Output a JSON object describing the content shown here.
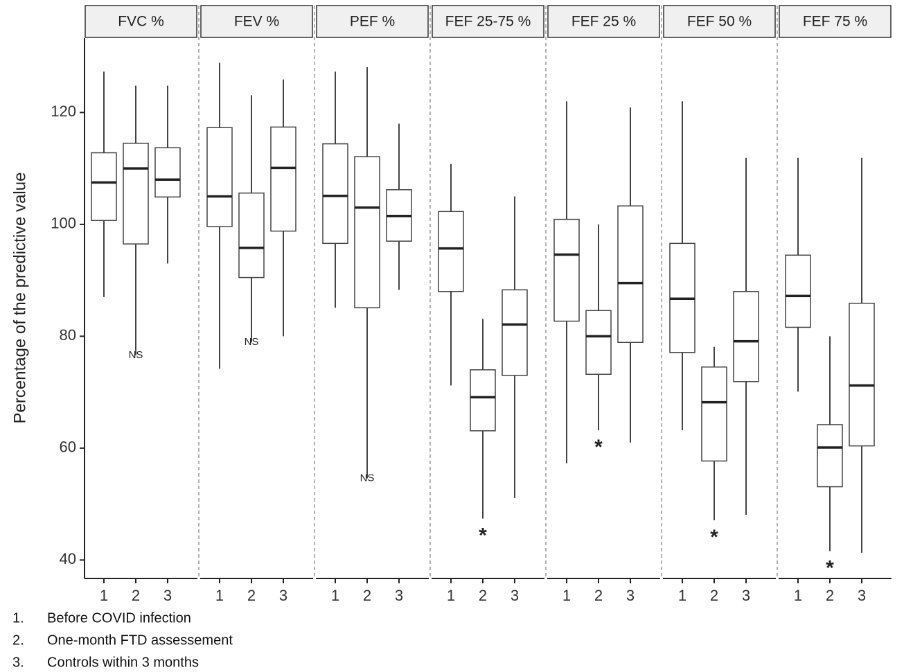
{
  "chart_data": {
    "type": "box",
    "ylabel": "Percentage of the predictive value",
    "ylim": [
      36.7,
      133.3
    ],
    "yticks": [
      40,
      60,
      80,
      100,
      120
    ],
    "facets": [
      {
        "title": "FVC %",
        "categories": [
          "1",
          "2",
          "3"
        ],
        "boxes": [
          {
            "whislo": 87.0,
            "q1": 100.7,
            "med": 107.5,
            "q3": 112.8,
            "whishi": 127.3
          },
          {
            "whislo": 76.6,
            "q1": 96.5,
            "med": 110.0,
            "q3": 114.5,
            "whishi": 124.8
          },
          {
            "whislo": 93.0,
            "q1": 104.9,
            "med": 108.0,
            "q3": 113.7,
            "whishi": 124.8
          }
        ],
        "annotation": {
          "text": "NS",
          "at": "2"
        }
      },
      {
        "title": "FEV %",
        "categories": [
          "1",
          "2",
          "3"
        ],
        "boxes": [
          {
            "whislo": 74.2,
            "q1": 99.6,
            "med": 105.0,
            "q3": 117.3,
            "whishi": 128.9
          },
          {
            "whislo": 78.9,
            "q1": 90.5,
            "med": 95.8,
            "q3": 105.6,
            "whishi": 123.1
          },
          {
            "whislo": 80.0,
            "q1": 98.8,
            "med": 110.1,
            "q3": 117.4,
            "whishi": 125.9
          }
        ],
        "annotation": {
          "text": "NS",
          "at": "2"
        }
      },
      {
        "title": "PEF %",
        "categories": [
          "1",
          "2",
          "3"
        ],
        "boxes": [
          {
            "whislo": 85.1,
            "q1": 96.6,
            "med": 105.1,
            "q3": 114.4,
            "whishi": 127.3
          },
          {
            "whislo": 54.6,
            "q1": 85.1,
            "med": 103.0,
            "q3": 112.1,
            "whishi": 128.1
          },
          {
            "whislo": 88.3,
            "q1": 97.0,
            "med": 101.5,
            "q3": 106.2,
            "whishi": 118.0
          }
        ],
        "annotation": {
          "text": "NS",
          "at": "2"
        }
      },
      {
        "title": "FEF 25-75 %",
        "categories": [
          "1",
          "2",
          "3"
        ],
        "boxes": [
          {
            "whislo": 71.2,
            "q1": 88.0,
            "med": 95.7,
            "q3": 102.3,
            "whishi": 110.8
          },
          {
            "whislo": 47.4,
            "q1": 63.1,
            "med": 69.1,
            "q3": 74.0,
            "whishi": 83.1
          },
          {
            "whislo": 51.1,
            "q1": 73.0,
            "med": 82.1,
            "q3": 88.3,
            "whishi": 105.0
          }
        ],
        "annotation": {
          "text": "*",
          "at": "2"
        }
      },
      {
        "title": "FEF 25 %",
        "categories": [
          "1",
          "2",
          "3"
        ],
        "boxes": [
          {
            "whislo": 57.3,
            "q1": 82.7,
            "med": 94.6,
            "q3": 100.9,
            "whishi": 122.0
          },
          {
            "whislo": 63.2,
            "q1": 73.2,
            "med": 80.0,
            "q3": 84.6,
            "whishi": 100.0
          },
          {
            "whislo": 61.0,
            "q1": 78.9,
            "med": 89.5,
            "q3": 103.3,
            "whishi": 120.9
          }
        ],
        "annotation": {
          "text": "*",
          "at": "2"
        }
      },
      {
        "title": "FEF 50 %",
        "categories": [
          "1",
          "2",
          "3"
        ],
        "boxes": [
          {
            "whislo": 63.2,
            "q1": 77.1,
            "med": 86.7,
            "q3": 96.6,
            "whishi": 122.0
          },
          {
            "whislo": 47.1,
            "q1": 57.7,
            "med": 68.2,
            "q3": 74.5,
            "whishi": 78.1
          },
          {
            "whislo": 48.1,
            "q1": 71.9,
            "med": 79.1,
            "q3": 88.0,
            "whishi": 111.9
          }
        ],
        "annotation": {
          "text": "*",
          "at": "2"
        }
      },
      {
        "title": "FEF 75 %",
        "categories": [
          "1",
          "2",
          "3"
        ],
        "boxes": [
          {
            "whislo": 70.1,
            "q1": 81.6,
            "med": 87.2,
            "q3": 94.5,
            "whishi": 111.9
          },
          {
            "whislo": 41.6,
            "q1": 53.1,
            "med": 60.1,
            "q3": 64.2,
            "whishi": 80.0
          },
          {
            "whislo": 41.3,
            "q1": 60.4,
            "med": 71.2,
            "q3": 85.9,
            "whishi": 111.9
          }
        ],
        "annotation": {
          "text": "*",
          "at": "2"
        }
      }
    ],
    "notes": [
      {
        "number": "1.",
        "text": "Before COVID infection"
      },
      {
        "number": "2.",
        "text": "One-month FTD assessement"
      },
      {
        "number": "3.",
        "text": "Controls within 3 months"
      }
    ]
  }
}
